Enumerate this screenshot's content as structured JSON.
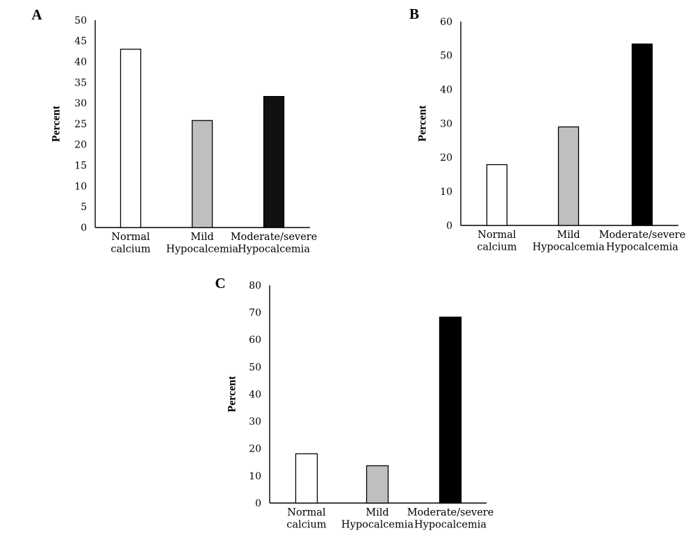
{
  "chart_data": [
    {
      "panel": "A",
      "type": "bar",
      "categories": [
        "Normal\ncalcium",
        "Mild\nHypocalcemia",
        "Moderate/severe\nHypocalcemia"
      ],
      "values": [
        43,
        25.8,
        31.6
      ],
      "bar_colors": [
        "#ffffff",
        "#bfbfbf",
        "#111111"
      ],
      "ylabel": "Percent",
      "ylim": [
        0,
        50
      ],
      "yticks": [
        0,
        5,
        10,
        15,
        20,
        25,
        30,
        35,
        40,
        45,
        50
      ],
      "grid": false
    },
    {
      "panel": "B",
      "type": "bar",
      "categories": [
        "Normal\ncalcium",
        "Mild\nHypocalcemia",
        "Moderate/severe\nHypocalcemia"
      ],
      "values": [
        17.9,
        29,
        53.4
      ],
      "bar_colors": [
        "#ffffff",
        "#bfbfbf",
        "#000000"
      ],
      "ylabel": "Percent",
      "ylim": [
        0,
        60
      ],
      "yticks": [
        0,
        10,
        20,
        30,
        40,
        50,
        60
      ],
      "grid": false
    },
    {
      "panel": "C",
      "type": "bar",
      "categories": [
        "Normal\ncalcium",
        "Mild\nHypocalcemia",
        "Moderate/severe\nHypocalcemia"
      ],
      "values": [
        18.1,
        13.7,
        68.3
      ],
      "bar_colors": [
        "#ffffff",
        "#bfbfbf",
        "#000000"
      ],
      "ylabel": "Percent",
      "ylim": [
        0,
        80
      ],
      "yticks": [
        0,
        10,
        20,
        30,
        40,
        50,
        60,
        70,
        80
      ],
      "grid": false
    }
  ]
}
